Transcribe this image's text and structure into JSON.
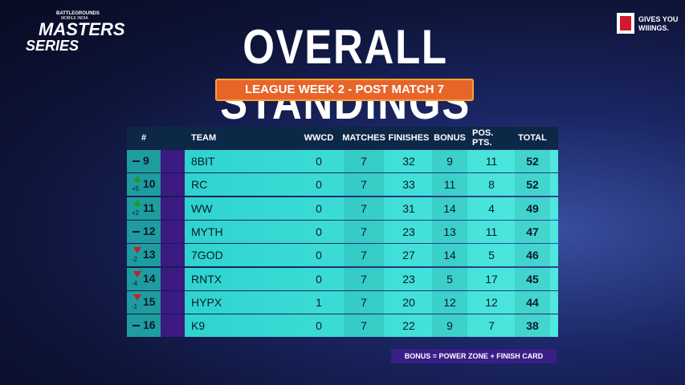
{
  "logo": {
    "top": "BATTLEGROUNDS",
    "middle": "MOBILE INDIA",
    "line1": "MASTERS",
    "line2": "SERIES"
  },
  "sponsor": {
    "line1": "GIVES YOU",
    "line2": "WIIINGS."
  },
  "title": "OVERALL STANDINGS",
  "subtitle": "LEAGUE WEEK 2 - POST MATCH 7",
  "table": {
    "headers": [
      "#",
      "TEAM",
      "WWCD",
      "MATCHES",
      "FINISHES",
      "BONUS",
      "POS. PTS.",
      "TOTAL"
    ],
    "rows": [
      {
        "rank": 9,
        "team": "8BIT",
        "wwcd": 0,
        "matches": 7,
        "finishes": 32,
        "bonus": 9,
        "pos_pts": 11,
        "total": 52
      },
      {
        "rank": 10,
        "change": "+5",
        "team": "RC",
        "wwcd": 0,
        "matches": 7,
        "finishes": 33,
        "bonus": 11,
        "pos_pts": 8,
        "total": 52
      },
      {
        "rank": 11,
        "change": "+2",
        "team": "WW",
        "wwcd": 0,
        "matches": 7,
        "finishes": 31,
        "bonus": 14,
        "pos_pts": 4,
        "total": 49
      },
      {
        "rank": 12,
        "team": "MYTH",
        "wwcd": 0,
        "matches": 7,
        "finishes": 23,
        "bonus": 13,
        "pos_pts": 11,
        "total": 47
      },
      {
        "rank": 13,
        "change": "-2",
        "team": "7GOD",
        "wwcd": 0,
        "matches": 7,
        "finishes": 27,
        "bonus": 14,
        "pos_pts": 5,
        "total": 46
      },
      {
        "rank": 14,
        "change": "-4",
        "team": "RNTX",
        "wwcd": 0,
        "matches": 7,
        "finishes": 23,
        "bonus": 5,
        "pos_pts": 17,
        "total": 45
      },
      {
        "rank": 15,
        "change": "-1",
        "team": "HYPX",
        "wwcd": 1,
        "matches": 7,
        "finishes": 20,
        "bonus": 12,
        "pos_pts": 12,
        "total": 44
      },
      {
        "rank": 16,
        "team": "K9",
        "wwcd": 0,
        "matches": 7,
        "finishes": 22,
        "bonus": 9,
        "pos_pts": 7,
        "total": 38
      }
    ]
  },
  "footnote": "BONUS = POWER ZONE + FINISH CARD"
}
